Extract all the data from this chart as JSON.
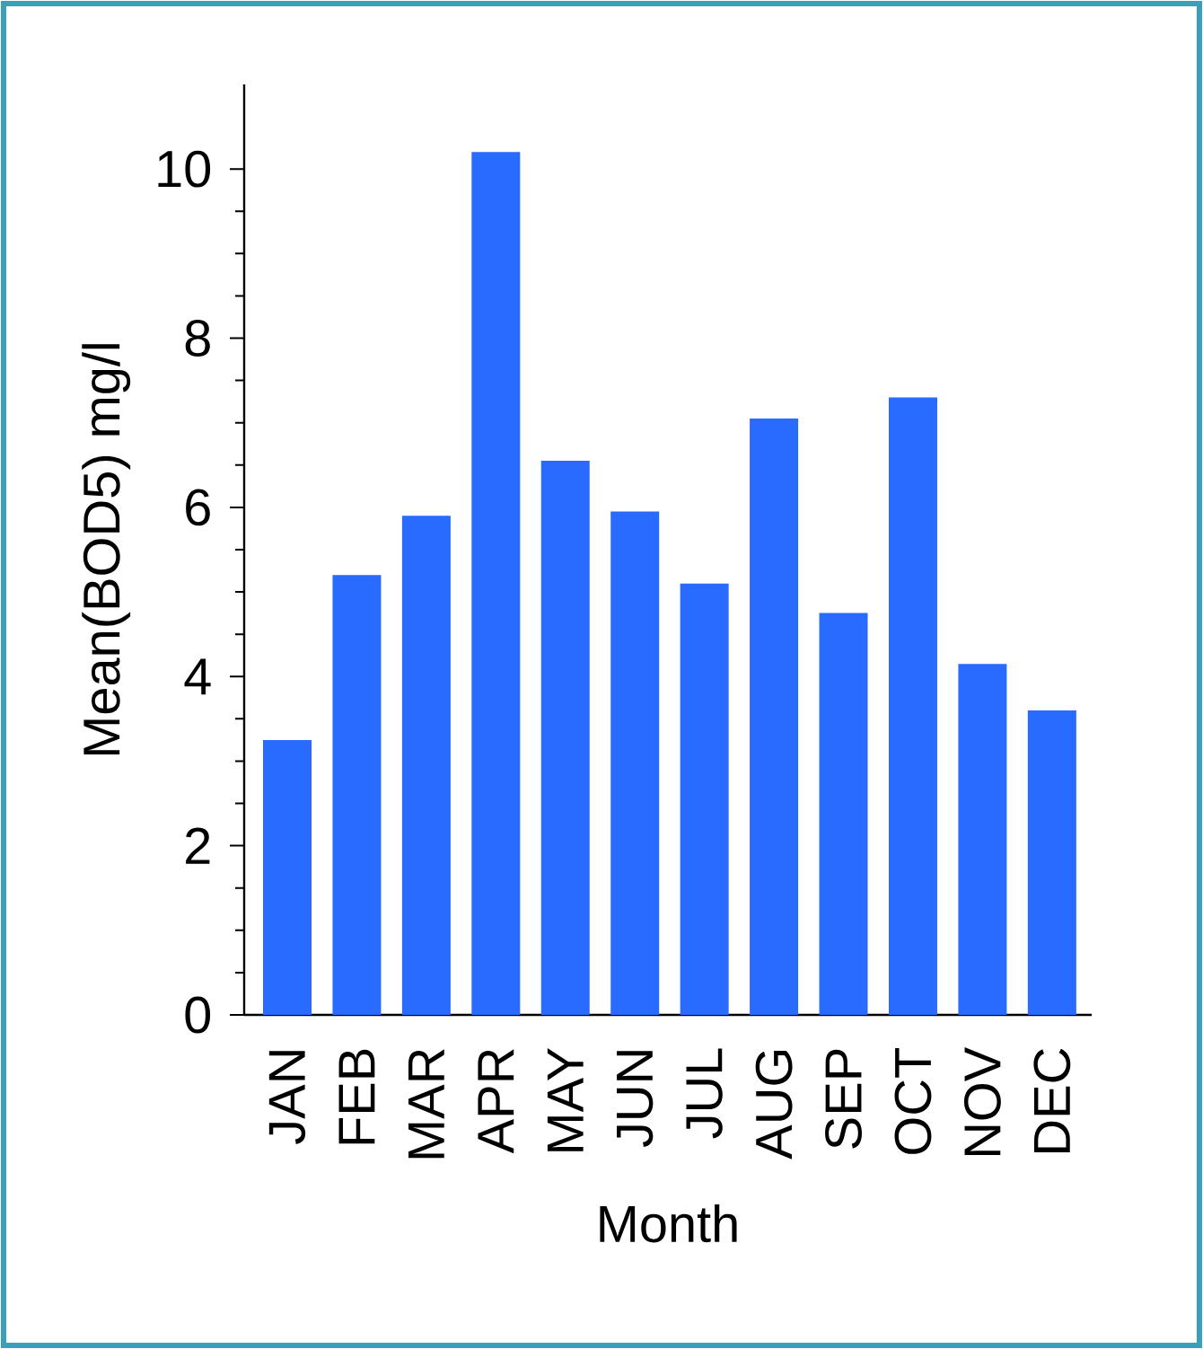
{
  "chart_data": {
    "type": "bar",
    "xlabel": "Month",
    "ylabel": "Mean(BOD5) mg/l",
    "categories": [
      "JAN",
      "FEB",
      "MAR",
      "APR",
      "MAY",
      "JUN",
      "JUL",
      "AUG",
      "SEP",
      "OCT",
      "NOV",
      "DEC"
    ],
    "values": [
      3.25,
      5.2,
      5.9,
      10.2,
      6.55,
      5.95,
      5.1,
      7.05,
      4.75,
      7.3,
      4.15,
      3.6
    ],
    "color": "#2a6bff",
    "ylim": [
      0,
      11
    ],
    "yticks": [
      0,
      2,
      4,
      6,
      8,
      10
    ],
    "grid": false
  }
}
